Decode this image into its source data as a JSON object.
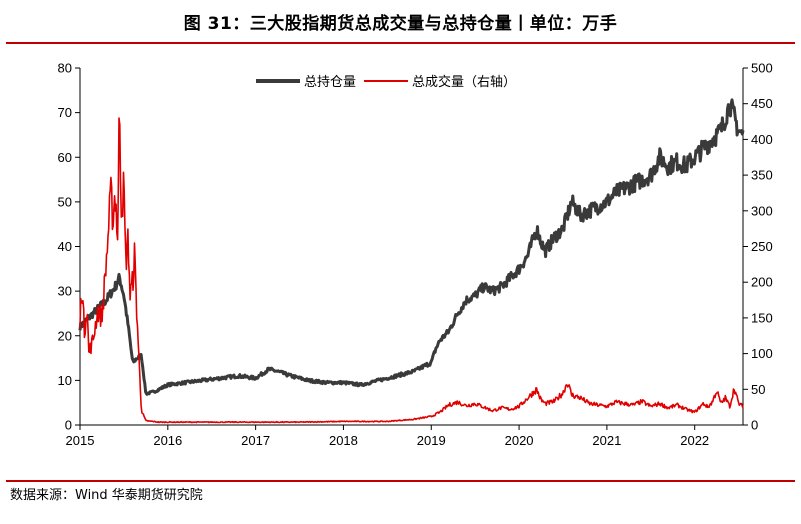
{
  "header": {
    "title": "图 31：三大股指期货总成交量与总持仓量丨单位：万手"
  },
  "footer": {
    "source": "数据来源：Wind  华泰期货研究院"
  },
  "chart_data": {
    "type": "line",
    "title": "图 31：三大股指期货总成交量与总持仓量丨单位：万手",
    "x_ticks": [
      "2015",
      "2016",
      "2017",
      "2018",
      "2019",
      "2020",
      "2021",
      "2022"
    ],
    "x_range": [
      2015.0,
      2022.55
    ],
    "y_left": {
      "ticks": [
        "0",
        "10",
        "20",
        "30",
        "40",
        "50",
        "60",
        "70",
        "80"
      ],
      "ylim": [
        0,
        80
      ]
    },
    "y_right": {
      "ticks": [
        "0",
        "50",
        "100",
        "150",
        "200",
        "250",
        "300",
        "350",
        "400",
        "450",
        "500"
      ],
      "ylim": [
        0,
        500
      ]
    },
    "legend_position": "top-center",
    "grid": false,
    "series": [
      {
        "name": "总持仓量",
        "axis": "left",
        "color": "#3a3a3a",
        "x": [
          2015.0,
          2015.1,
          2015.2,
          2015.3,
          2015.4,
          2015.45,
          2015.5,
          2015.55,
          2015.6,
          2015.65,
          2015.7,
          2015.75,
          2015.85,
          2016.0,
          2016.2,
          2016.4,
          2016.6,
          2016.8,
          2017.0,
          2017.15,
          2017.25,
          2017.4,
          2017.6,
          2017.8,
          2018.0,
          2018.2,
          2018.4,
          2018.6,
          2018.8,
          2019.0,
          2019.05,
          2019.1,
          2019.2,
          2019.3,
          2019.4,
          2019.5,
          2019.6,
          2019.7,
          2019.8,
          2019.9,
          2020.0,
          2020.1,
          2020.2,
          2020.25,
          2020.3,
          2020.4,
          2020.5,
          2020.6,
          2020.7,
          2020.8,
          2020.9,
          2021.0,
          2021.1,
          2021.2,
          2021.3,
          2021.4,
          2021.5,
          2021.6,
          2021.7,
          2021.8,
          2021.9,
          2022.0,
          2022.1,
          2022.2,
          2022.3,
          2022.4,
          2022.5,
          2022.55
        ],
        "values": [
          22,
          24,
          26,
          28,
          31,
          33,
          29,
          22,
          14,
          15,
          15.5,
          7,
          7.5,
          9,
          9.5,
          10,
          10.5,
          11,
          10.5,
          12.5,
          12,
          11,
          10,
          9.5,
          9.5,
          9,
          10,
          11,
          12,
          14,
          17,
          19,
          21,
          25,
          28,
          29,
          31,
          30,
          31,
          33,
          35,
          38,
          44,
          41,
          39,
          42,
          44,
          50,
          47,
          48,
          49,
          50,
          52,
          53,
          54,
          55,
          56,
          60,
          58,
          59,
          58,
          60,
          62,
          64,
          66,
          72,
          66,
          65
        ]
      },
      {
        "name": "总成交量（右轴）",
        "axis": "right",
        "color": "#e00000",
        "x": [
          2015.0,
          2015.02,
          2015.05,
          2015.08,
          2015.1,
          2015.15,
          2015.2,
          2015.25,
          2015.3,
          2015.35,
          2015.38,
          2015.4,
          2015.43,
          2015.45,
          2015.47,
          2015.5,
          2015.52,
          2015.55,
          2015.57,
          2015.6,
          2015.62,
          2015.65,
          2015.68,
          2015.7,
          2015.75,
          2015.9,
          2016.5,
          2017.0,
          2017.5,
          2018.0,
          2018.5,
          2018.8,
          2019.0,
          2019.1,
          2019.2,
          2019.3,
          2019.4,
          2019.5,
          2019.6,
          2019.7,
          2019.8,
          2019.9,
          2020.0,
          2020.1,
          2020.2,
          2020.25,
          2020.3,
          2020.4,
          2020.5,
          2020.55,
          2020.6,
          2020.7,
          2020.8,
          2020.9,
          2021.0,
          2021.1,
          2021.2,
          2021.3,
          2021.4,
          2021.5,
          2021.6,
          2021.7,
          2021.8,
          2021.9,
          2022.0,
          2022.1,
          2022.15,
          2022.2,
          2022.25,
          2022.3,
          2022.35,
          2022.4,
          2022.45,
          2022.5,
          2022.55
        ],
        "values": [
          140,
          200,
          130,
          170,
          100,
          120,
          160,
          150,
          230,
          320,
          290,
          330,
          260,
          455,
          310,
          330,
          230,
          260,
          180,
          200,
          240,
          150,
          70,
          20,
          6,
          4,
          4,
          4,
          4,
          5,
          5,
          8,
          12,
          18,
          28,
          32,
          27,
          30,
          25,
          20,
          24,
          22,
          26,
          38,
          50,
          35,
          30,
          33,
          45,
          60,
          42,
          38,
          30,
          28,
          26,
          32,
          30,
          28,
          33,
          26,
          30,
          24,
          28,
          22,
          18,
          30,
          25,
          32,
          48,
          30,
          38,
          26,
          52,
          30,
          26
        ]
      }
    ]
  }
}
